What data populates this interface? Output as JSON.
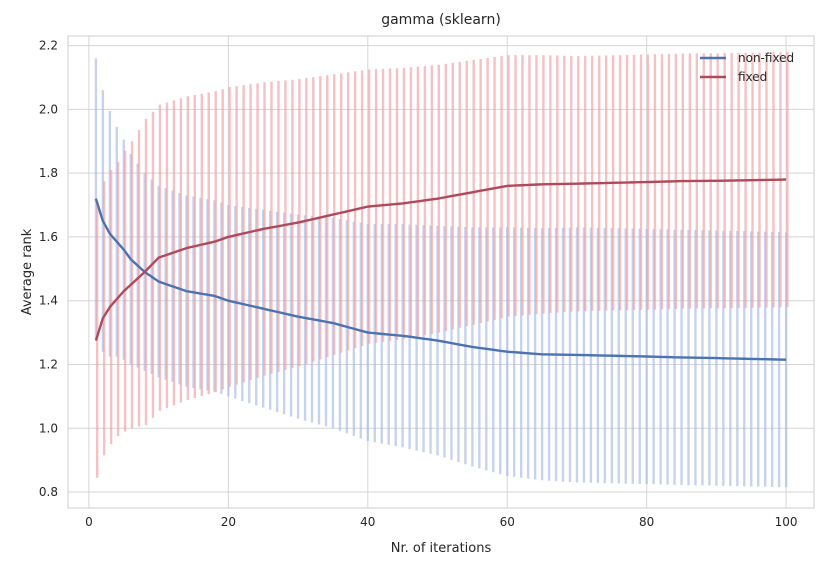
{
  "chart_data": {
    "type": "line",
    "title": "gamma (sklearn)",
    "xlabel": "Nr. of iterations",
    "ylabel": "Average rank",
    "xlim": [
      -3,
      104
    ],
    "ylim": [
      0.75,
      2.23
    ],
    "x_ticks": [
      0,
      20,
      40,
      60,
      80,
      100
    ],
    "y_ticks": [
      0.8,
      1.0,
      1.2,
      1.4,
      1.6,
      1.8,
      2.0,
      2.2
    ],
    "x_tick_labels": [
      "0",
      "20",
      "40",
      "60",
      "80",
      "100"
    ],
    "y_tick_labels": [
      "0.8",
      "1.0",
      "1.2",
      "1.4",
      "1.6",
      "1.8",
      "2.0",
      "2.2"
    ],
    "grid": true,
    "legend_position": "top-right",
    "error_bars": true,
    "x_range": [
      1,
      100
    ],
    "series": [
      {
        "name": "non-fixed",
        "color": "#4C72B0",
        "band_color": "#A9BCE3",
        "anchors": [
          [
            1,
            1.72
          ],
          [
            2,
            1.65
          ],
          [
            3,
            1.61
          ],
          [
            5,
            1.56
          ],
          [
            6,
            1.53
          ],
          [
            8,
            1.49
          ],
          [
            10,
            1.46
          ],
          [
            14,
            1.43
          ],
          [
            18,
            1.415
          ],
          [
            20,
            1.4
          ],
          [
            25,
            1.375
          ],
          [
            30,
            1.35
          ],
          [
            35,
            1.33
          ],
          [
            40,
            1.3
          ],
          [
            45,
            1.29
          ],
          [
            50,
            1.275
          ],
          [
            55,
            1.255
          ],
          [
            60,
            1.24
          ],
          [
            65,
            1.232
          ],
          [
            70,
            1.23
          ],
          [
            80,
            1.225
          ],
          [
            85,
            1.222
          ],
          [
            90,
            1.22
          ],
          [
            100,
            1.215
          ]
        ],
        "err_anchors": [
          [
            1,
            0.44
          ],
          [
            2,
            0.41
          ],
          [
            4,
            0.36
          ],
          [
            6,
            0.33
          ],
          [
            8,
            0.31
          ],
          [
            10,
            0.3
          ],
          [
            20,
            0.3
          ],
          [
            30,
            0.32
          ],
          [
            40,
            0.34
          ],
          [
            50,
            0.36
          ],
          [
            60,
            0.39
          ],
          [
            70,
            0.4
          ],
          [
            80,
            0.4
          ],
          [
            100,
            0.4
          ]
        ]
      },
      {
        "name": "fixed",
        "color": "#B04A5A",
        "band_color": "#EFA0A6",
        "anchors": [
          [
            1,
            1.275
          ],
          [
            2,
            1.345
          ],
          [
            3,
            1.38
          ],
          [
            5,
            1.43
          ],
          [
            8,
            1.49
          ],
          [
            10,
            1.535
          ],
          [
            14,
            1.565
          ],
          [
            18,
            1.585
          ],
          [
            20,
            1.6
          ],
          [
            25,
            1.625
          ],
          [
            30,
            1.645
          ],
          [
            35,
            1.67
          ],
          [
            40,
            1.695
          ],
          [
            45,
            1.705
          ],
          [
            50,
            1.72
          ],
          [
            55,
            1.74
          ],
          [
            60,
            1.76
          ],
          [
            65,
            1.765
          ],
          [
            70,
            1.767
          ],
          [
            80,
            1.772
          ],
          [
            85,
            1.775
          ],
          [
            90,
            1.776
          ],
          [
            100,
            1.78
          ]
        ],
        "err_anchors": [
          [
            1,
            0.43
          ],
          [
            2,
            0.43
          ],
          [
            4,
            0.43
          ],
          [
            6,
            0.45
          ],
          [
            8,
            0.48
          ],
          [
            10,
            0.48
          ],
          [
            20,
            0.47
          ],
          [
            30,
            0.45
          ],
          [
            40,
            0.43
          ],
          [
            50,
            0.42
          ],
          [
            60,
            0.41
          ],
          [
            70,
            0.4
          ],
          [
            80,
            0.4
          ],
          [
            100,
            0.4
          ]
        ]
      }
    ]
  }
}
